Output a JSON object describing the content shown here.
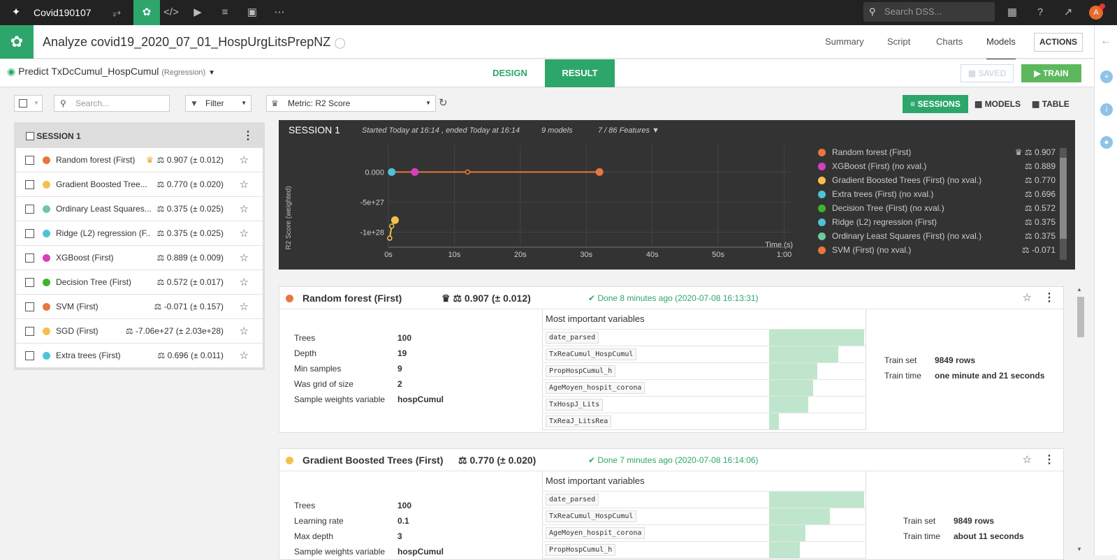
{
  "topnav": {
    "project": "Covid190107",
    "search_placeholder": "Search DSS...",
    "avatar_letter": "A"
  },
  "header": {
    "title": "Analyze covid19_2020_07_01_HospUrgLitsPrepNZ",
    "tabs": [
      "Summary",
      "Script",
      "Charts",
      "Models"
    ],
    "actions_label": "ACTIONS"
  },
  "subheader": {
    "predict": "Predict TxDcCumul_HospCumul",
    "mode": "(Regression)",
    "design_tab": "DESIGN",
    "result_tab": "RESULT",
    "saved_label": "SAVED",
    "train_label": "TRAIN"
  },
  "toolbar": {
    "search_placeholder": "Search...",
    "filter_label": "Filter",
    "metric_label": "Metric: R2 Score",
    "view_sessions": "SESSIONS",
    "view_models": "MODELS",
    "view_table": "TABLE"
  },
  "left_panel": {
    "session_title": "SESSION 1",
    "models": [
      {
        "name": "Random forest (First)",
        "score": "0.907 (± 0.012)",
        "color": "#e8773d",
        "best": true
      },
      {
        "name": "Gradient Boosted Tree...",
        "score": "0.770 (± 0.020)",
        "color": "#f5c04a",
        "best": false
      },
      {
        "name": "Ordinary Least Squares...",
        "score": "0.375 (± 0.025)",
        "color": "#6fc9a0",
        "best": false
      },
      {
        "name": "Ridge (L2) regression (F...",
        "score": "0.375 (± 0.025)",
        "color": "#4fc3d6",
        "best": false
      },
      {
        "name": "XGBoost (First)",
        "score": "0.889 (± 0.009)",
        "color": "#d83fc0",
        "best": false
      },
      {
        "name": "Decision Tree (First)",
        "score": "0.572 (± 0.017)",
        "color": "#3db52a",
        "best": false
      },
      {
        "name": "SVM (First)",
        "score": "-0.071 (± 0.157)",
        "color": "#e8773d",
        "best": false
      },
      {
        "name": "SGD (First)",
        "score": "-7.06e+27 (± 2.03e+28)",
        "color": "#f5c04a",
        "best": false
      },
      {
        "name": "Extra trees (First)",
        "score": "0.696 (± 0.011)",
        "color": "#4fc3d6",
        "best": false
      }
    ]
  },
  "session": {
    "title": "SESSION 1",
    "timing": "Started Today at 16:14 , ended Today at 16:14",
    "models_count": "9 models",
    "features": "7 / 86 Features"
  },
  "chart_data": {
    "type": "line",
    "ylabel": "R2 Score (weighted)",
    "xlabel": "Time (s)",
    "x_ticks": [
      "0s",
      "10s",
      "20s",
      "30s",
      "40s",
      "50s",
      "1:00"
    ],
    "y_ticks": [
      "0.000",
      "-5e+27",
      "-1e+28"
    ],
    "series": [
      {
        "color": "#e8773d",
        "points": [
          [
            0.5,
            0.0
          ],
          [
            12,
            0.0
          ],
          [
            32,
            0.0
          ]
        ]
      },
      {
        "color": "#f5c04a",
        "points": [
          [
            0.2,
            -1.1e+28
          ],
          [
            0.5,
            -9e+27
          ],
          [
            1.0,
            -8e+27
          ]
        ]
      }
    ],
    "markers": [
      {
        "x": 0.5,
        "y": 0.0,
        "color": "#4fc3d6"
      },
      {
        "x": 4,
        "y": 0.0,
        "color": "#d83fc0"
      },
      {
        "x": 32,
        "y": 0.0,
        "color": "#e8773d"
      },
      {
        "x": 1.0,
        "y": -8e+27,
        "color": "#f5c04a"
      }
    ],
    "legend": [
      {
        "name": "Random forest (First)",
        "value": "0.907",
        "color": "#e8773d",
        "best": true
      },
      {
        "name": "XGBoost (First) (no xval.)",
        "value": "0.889",
        "color": "#d83fc0",
        "best": false
      },
      {
        "name": "Gradient Boosted Trees (First) (no xval.)",
        "value": "0.770",
        "color": "#f5c04a",
        "best": false
      },
      {
        "name": "Extra trees (First) (no xval.)",
        "value": "0.696",
        "color": "#4fc3d6",
        "best": false
      },
      {
        "name": "Decision Tree (First) (no xval.)",
        "value": "0.572",
        "color": "#3db52a",
        "best": false
      },
      {
        "name": "Ridge (L2) regression (First)",
        "value": "0.375",
        "color": "#4fc3d6",
        "best": false
      },
      {
        "name": "Ordinary Least Squares (First) (no xval.)",
        "value": "0.375",
        "color": "#6fc9a0",
        "best": false
      },
      {
        "name": "SVM (First) (no xval.)",
        "value": "-0.071",
        "color": "#e8773d",
        "best": false
      }
    ]
  },
  "cards": [
    {
      "name": "Random forest (First)",
      "score": "0.907 (± 0.012)",
      "color": "#e8773d",
      "done": "Done 8 minutes ago (2020-07-08 16:13:31)",
      "params": [
        [
          "Trees",
          "100"
        ],
        [
          "Depth",
          "19"
        ],
        [
          "Min samples",
          "9"
        ],
        [
          "Was grid of size",
          "2"
        ],
        [
          "Sample weights variable",
          "hospCumul"
        ]
      ],
      "vars_title": "Most important variables",
      "vars": [
        [
          "date_parsed",
          1.0
        ],
        [
          "TxReaCumul_HospCumul",
          0.73
        ],
        [
          "PropHospCumul_h",
          0.51
        ],
        [
          "AgeMoyen_hospit_corona",
          0.46
        ],
        [
          "TxHospJ_Lits",
          0.41
        ],
        [
          "TxReaJ_LitsRea",
          0.1
        ]
      ],
      "train_set_label": "Train set",
      "train_set": "9849 rows",
      "train_time_label": "Train time",
      "train_time": "one minute and 21 seconds"
    },
    {
      "name": "Gradient Boosted Trees (First)",
      "score": "0.770 (± 0.020)",
      "color": "#f5c04a",
      "done": "Done 7 minutes ago (2020-07-08 16:14:06)",
      "params": [
        [
          "Trees",
          "100"
        ],
        [
          "Learning rate",
          "0.1"
        ],
        [
          "Max depth",
          "3"
        ],
        [
          "Sample weights variable",
          "hospCumul"
        ]
      ],
      "vars_title": "Most important variables",
      "vars": [
        [
          "date_parsed",
          1.0
        ],
        [
          "TxReaCumul_HospCumul",
          0.64
        ],
        [
          "AgeMoyen_hospit_corona",
          0.38
        ],
        [
          "PropHospCumul_h",
          0.32
        ]
      ],
      "train_set_label": "Train set",
      "train_set": "9849 rows",
      "train_time_label": "Train time",
      "train_time": "about 11 seconds"
    }
  ]
}
